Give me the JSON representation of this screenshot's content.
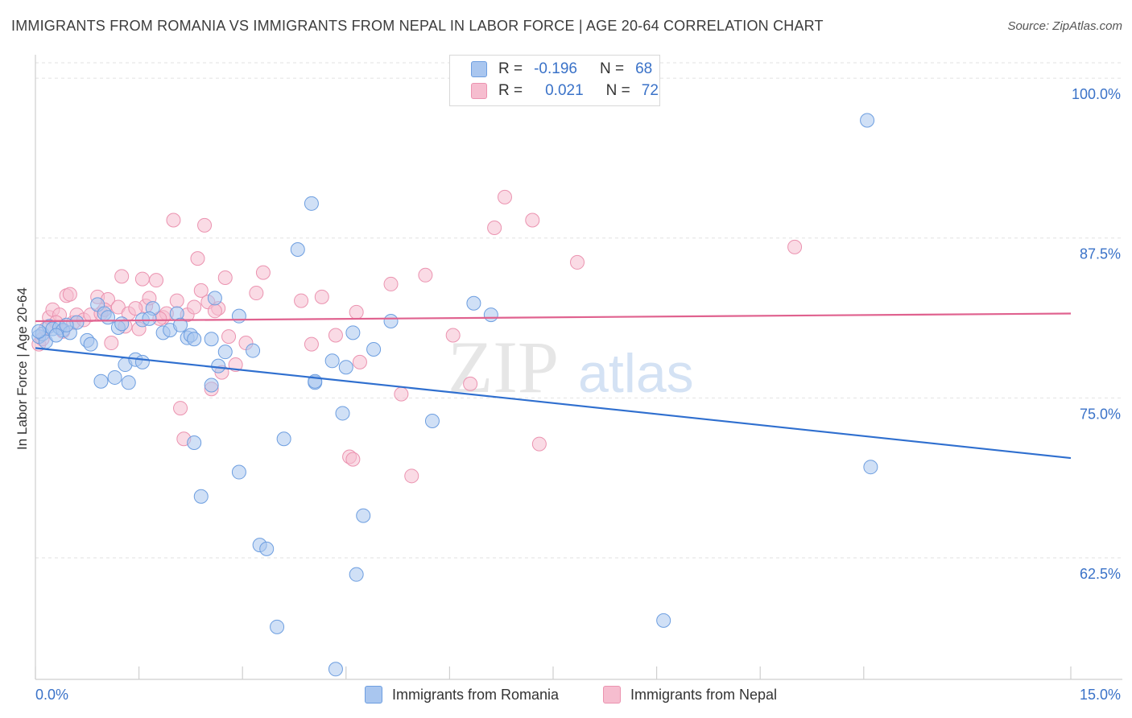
{
  "title": "IMMIGRANTS FROM ROMANIA VS IMMIGRANTS FROM NEPAL IN LABOR FORCE | AGE 20-64 CORRELATION CHART",
  "source": "Source: ZipAtlas.com",
  "watermark": {
    "zip": "ZIP",
    "atlas": "atlas"
  },
  "legend": {
    "romania": {
      "r_label": "R =",
      "r_value": "-0.196",
      "n_label": "N =",
      "n_value": "68"
    },
    "nepal": {
      "r_label": "R =",
      "r_value": "0.021",
      "n_label": "N =",
      "n_value": "72"
    }
  },
  "bottom_legend": {
    "romania": "Immigrants from Romania",
    "nepal": "Immigrants from Nepal"
  },
  "x_tick_left": "0.0%",
  "x_tick_right": "15.0%",
  "colors": {
    "romania_fill": "#a9c6ef",
    "romania_stroke": "#6d9ee0",
    "romania_line": "#2f6fcf",
    "nepal_fill": "#f6bdcf",
    "nepal_stroke": "#eb93b0",
    "nepal_line": "#e0628f",
    "axis_label": "#3a72c8",
    "grid": "#e2e2e2"
  },
  "chart_data": {
    "type": "scatter",
    "title": "IMMIGRANTS FROM ROMANIA VS IMMIGRANTS FROM NEPAL IN LABOR FORCE | AGE 20-64 CORRELATION CHART",
    "xlabel": "",
    "ylabel": "In Labor Force | Age 20-64",
    "xlim": [
      0,
      15
    ],
    "ylim": [
      53,
      101.2
    ],
    "y_ticks": [
      {
        "value": 100,
        "label": "100.0%"
      },
      {
        "value": 87.5,
        "label": "87.5%"
      },
      {
        "value": 75,
        "label": "75.0%"
      },
      {
        "value": 62.5,
        "label": "62.5%"
      }
    ],
    "x_tick_marks": [
      0,
      1.5,
      3,
      4.5,
      6,
      7.5,
      9,
      10.5,
      12,
      15
    ],
    "series": [
      {
        "name": "Immigrants from Romania",
        "trend": {
          "x0": 0,
          "y0": 78.9,
          "x1": 15,
          "y1": 70.3
        },
        "points": [
          [
            0.05,
            79.8
          ],
          [
            0.1,
            80.0
          ],
          [
            0.15,
            79.4
          ],
          [
            0.2,
            80.6
          ],
          [
            0.25,
            80.4
          ],
          [
            0.35,
            80.5
          ],
          [
            0.4,
            80.3
          ],
          [
            0.5,
            80.1
          ],
          [
            0.6,
            80.9
          ],
          [
            0.75,
            79.5
          ],
          [
            0.8,
            79.2
          ],
          [
            0.9,
            82.3
          ],
          [
            1.0,
            81.6
          ],
          [
            0.95,
            76.3
          ],
          [
            1.2,
            80.5
          ],
          [
            1.25,
            80.8
          ],
          [
            1.15,
            76.6
          ],
          [
            1.35,
            76.2
          ],
          [
            1.3,
            77.6
          ],
          [
            1.45,
            78.0
          ],
          [
            1.55,
            77.8
          ],
          [
            1.55,
            81.1
          ],
          [
            1.7,
            82.0
          ],
          [
            1.85,
            80.1
          ],
          [
            1.95,
            80.3
          ],
          [
            2.05,
            81.6
          ],
          [
            2.1,
            80.7
          ],
          [
            2.2,
            79.7
          ],
          [
            2.25,
            79.9
          ],
          [
            2.3,
            79.6
          ],
          [
            2.3,
            71.5
          ],
          [
            2.4,
            67.3
          ],
          [
            2.55,
            79.6
          ],
          [
            2.55,
            76.0
          ],
          [
            2.6,
            82.8
          ],
          [
            2.65,
            77.5
          ],
          [
            2.75,
            78.6
          ],
          [
            2.95,
            81.4
          ],
          [
            2.95,
            69.2
          ],
          [
            3.15,
            78.7
          ],
          [
            3.25,
            63.5
          ],
          [
            3.35,
            63.2
          ],
          [
            3.5,
            57.1
          ],
          [
            3.6,
            71.8
          ],
          [
            3.8,
            86.6
          ],
          [
            4.0,
            90.2
          ],
          [
            4.05,
            76.2
          ],
          [
            4.05,
            76.3
          ],
          [
            4.3,
            77.9
          ],
          [
            4.35,
            53.8
          ],
          [
            4.45,
            73.8
          ],
          [
            4.5,
            77.4
          ],
          [
            4.6,
            80.1
          ],
          [
            4.65,
            61.2
          ],
          [
            4.75,
            65.8
          ],
          [
            4.9,
            78.8
          ],
          [
            5.15,
            81.0
          ],
          [
            5.75,
            73.2
          ],
          [
            6.35,
            82.4
          ],
          [
            6.6,
            81.5
          ],
          [
            9.1,
            57.6
          ],
          [
            12.05,
            96.7
          ],
          [
            12.1,
            69.6
          ],
          [
            0.3,
            79.9
          ],
          [
            0.45,
            80.7
          ],
          [
            1.05,
            81.3
          ],
          [
            1.65,
            81.2
          ],
          [
            0.05,
            80.2
          ]
        ]
      },
      {
        "name": "Immigrants from Nepal",
        "trend": {
          "x0": 0,
          "y0": 81.0,
          "x1": 15,
          "y1": 81.6
        },
        "points": [
          [
            0.05,
            79.2
          ],
          [
            0.1,
            79.6
          ],
          [
            0.15,
            80.4
          ],
          [
            0.2,
            81.3
          ],
          [
            0.25,
            81.9
          ],
          [
            0.35,
            81.5
          ],
          [
            0.45,
            83.0
          ],
          [
            0.5,
            83.1
          ],
          [
            0.55,
            80.9
          ],
          [
            0.6,
            81.5
          ],
          [
            0.7,
            81.1
          ],
          [
            0.8,
            81.5
          ],
          [
            0.9,
            82.9
          ],
          [
            0.95,
            81.6
          ],
          [
            1.05,
            82.7
          ],
          [
            1.1,
            79.3
          ],
          [
            1.2,
            82.1
          ],
          [
            1.25,
            84.5
          ],
          [
            1.3,
            80.6
          ],
          [
            1.35,
            81.6
          ],
          [
            1.5,
            80.4
          ],
          [
            1.55,
            84.3
          ],
          [
            1.6,
            82.2
          ],
          [
            1.65,
            82.8
          ],
          [
            1.75,
            84.2
          ],
          [
            1.85,
            81.3
          ],
          [
            1.9,
            81.6
          ],
          [
            2.0,
            88.9
          ],
          [
            2.05,
            82.6
          ],
          [
            2.1,
            74.2
          ],
          [
            2.15,
            71.8
          ],
          [
            2.2,
            81.5
          ],
          [
            2.3,
            82.1
          ],
          [
            2.35,
            85.9
          ],
          [
            2.4,
            83.4
          ],
          [
            2.45,
            88.5
          ],
          [
            2.5,
            82.5
          ],
          [
            2.55,
            75.7
          ],
          [
            2.65,
            82.0
          ],
          [
            2.7,
            77.0
          ],
          [
            2.75,
            84.4
          ],
          [
            2.8,
            79.8
          ],
          [
            2.9,
            77.6
          ],
          [
            3.05,
            79.3
          ],
          [
            3.2,
            83.2
          ],
          [
            3.3,
            84.8
          ],
          [
            3.85,
            82.6
          ],
          [
            4.0,
            79.2
          ],
          [
            4.15,
            82.9
          ],
          [
            4.35,
            79.9
          ],
          [
            4.55,
            70.4
          ],
          [
            4.6,
            70.2
          ],
          [
            4.65,
            81.7
          ],
          [
            4.7,
            77.8
          ],
          [
            5.15,
            83.9
          ],
          [
            5.3,
            75.3
          ],
          [
            5.45,
            68.9
          ],
          [
            5.65,
            84.6
          ],
          [
            6.05,
            79.9
          ],
          [
            6.3,
            76.1
          ],
          [
            6.65,
            88.3
          ],
          [
            6.8,
            90.7
          ],
          [
            7.2,
            88.9
          ],
          [
            7.3,
            71.4
          ],
          [
            7.85,
            85.6
          ],
          [
            11.0,
            86.8
          ],
          [
            0.3,
            80.9
          ],
          [
            0.4,
            80.2
          ],
          [
            1.0,
            81.9
          ],
          [
            1.45,
            82.0
          ],
          [
            1.8,
            81.2
          ],
          [
            2.6,
            81.8
          ]
        ]
      }
    ]
  }
}
